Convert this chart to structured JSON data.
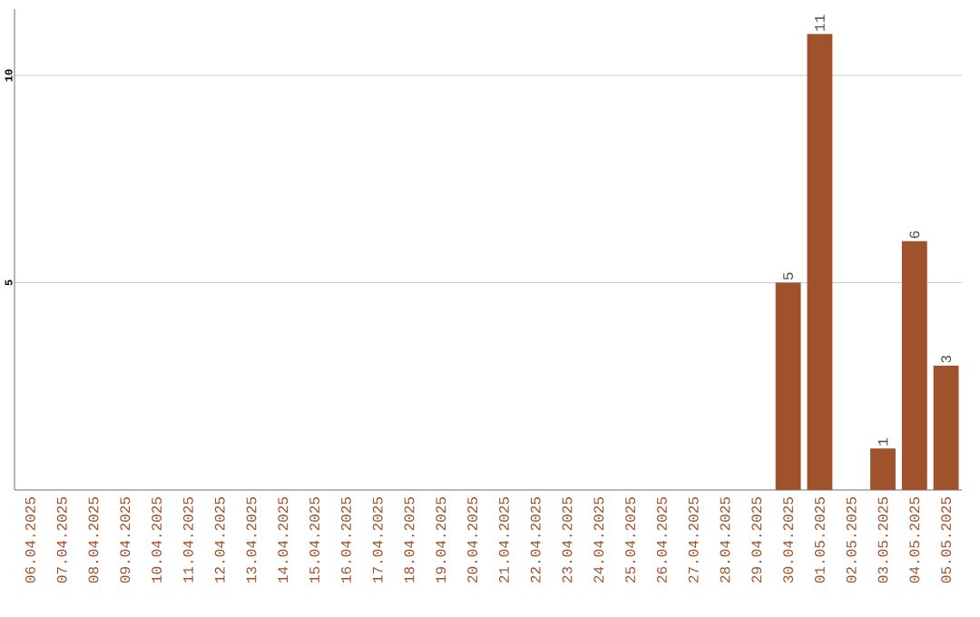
{
  "chart_data": {
    "type": "bar",
    "categories": [
      "06.04.2025",
      "07.04.2025",
      "08.04.2025",
      "09.04.2025",
      "10.04.2025",
      "11.04.2025",
      "12.04.2025",
      "13.04.2025",
      "14.04.2025",
      "15.04.2025",
      "16.04.2025",
      "17.04.2025",
      "18.04.2025",
      "19.04.2025",
      "20.04.2025",
      "21.04.2025",
      "22.04.2025",
      "23.04.2025",
      "24.04.2025",
      "25.04.2025",
      "26.04.2025",
      "27.04.2025",
      "28.04.2025",
      "29.04.2025",
      "30.04.2025",
      "01.05.2025",
      "02.05.2025",
      "03.05.2025",
      "04.05.2025",
      "05.05.2025"
    ],
    "values": [
      0,
      0,
      0,
      0,
      0,
      0,
      0,
      0,
      0,
      0,
      0,
      0,
      0,
      0,
      0,
      0,
      0,
      0,
      0,
      0,
      0,
      0,
      0,
      0,
      5,
      11,
      0,
      1,
      6,
      3
    ],
    "value_labels": [
      null,
      null,
      null,
      null,
      null,
      null,
      null,
      null,
      null,
      null,
      null,
      null,
      null,
      null,
      null,
      null,
      null,
      null,
      null,
      null,
      null,
      null,
      null,
      null,
      "5",
      "11",
      null,
      "1",
      "6",
      "3"
    ],
    "color": "#a0522d",
    "ylim": [
      0,
      11.6
    ],
    "yticks": [
      5,
      10
    ],
    "grid": "y"
  }
}
